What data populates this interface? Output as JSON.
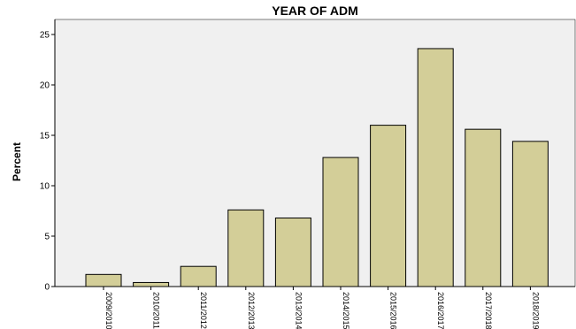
{
  "chart_data": {
    "type": "bar",
    "title": "YEAR OF ADM",
    "xlabel": "",
    "ylabel": "Percent",
    "categories": [
      "2009/2010",
      "2010/2011",
      "2011/2012",
      "2012/2013",
      "2013/2014",
      "2014/2015",
      "2015/2016",
      "2016/2017",
      "2017/2018",
      "2018/2019"
    ],
    "values": [
      1.2,
      0.4,
      2.0,
      7.6,
      6.8,
      12.8,
      16.0,
      23.6,
      15.6,
      14.4
    ],
    "ylim": [
      0,
      25
    ],
    "yticks": [
      "0",
      "5",
      "10",
      "15",
      "20",
      "25"
    ],
    "grid": false,
    "colors": {
      "bar": "#d3ce98",
      "plot_bg": "#f0f0f0"
    }
  }
}
